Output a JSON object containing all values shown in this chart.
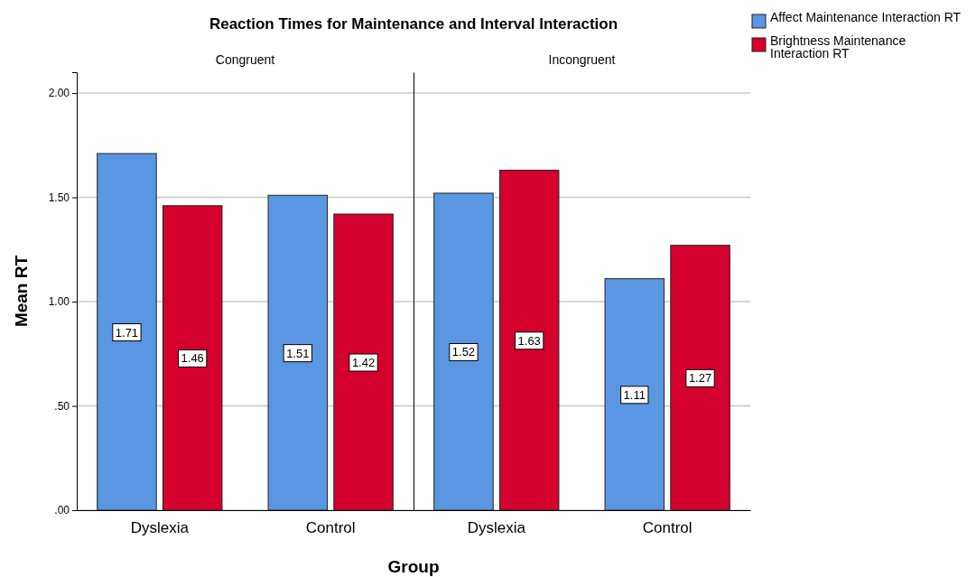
{
  "chart_data": [
    {
      "type": "bar",
      "title": "Reaction Times for Maintenance and Interval Interaction",
      "subtitle": "Congruent",
      "xlabel": "Group",
      "ylabel": "Mean RT",
      "categories": [
        "Dyslexia",
        "Control"
      ],
      "series": [
        {
          "name": "Affect Maintenance Interaction RT",
          "color": "#5b96e2",
          "values": [
            1.71,
            1.51
          ]
        },
        {
          "name": "Brightness Maintenance Interaction RT",
          "color": "#d4002e",
          "values": [
            1.46,
            1.42
          ]
        }
      ],
      "ylim": [
        0,
        2.1
      ],
      "yticks": [
        {
          "value": 0,
          "label": ".00"
        },
        {
          "value": 0.5,
          "label": ".50"
        },
        {
          "value": 1,
          "label": "1.00"
        },
        {
          "value": 1.5,
          "label": "1.50"
        },
        {
          "value": 2,
          "label": "2.00"
        }
      ],
      "grid": "y",
      "legend": "top right",
      "data_labels": true
    },
    {
      "type": "bar",
      "subtitle": "Incongruent",
      "categories": [
        "Dyslexia",
        "Control"
      ],
      "series": [
        {
          "color": "#5b96e2",
          "values": [
            1.52,
            1.11
          ]
        },
        {
          "color": "#d4002e",
          "values": [
            1.63,
            1.27
          ]
        }
      ],
      "ylim": [
        0,
        2.1
      ],
      "yticks": [
        {
          "value": 0,
          "label": null
        },
        {
          "value": 0.5,
          "label": null
        },
        {
          "value": 1,
          "label": null
        },
        {
          "value": 1.5,
          "label": null
        },
        {
          "value": 2,
          "label": null
        }
      ],
      "grid": "y",
      "tick_labels": "x",
      "data_labels": true
    }
  ]
}
